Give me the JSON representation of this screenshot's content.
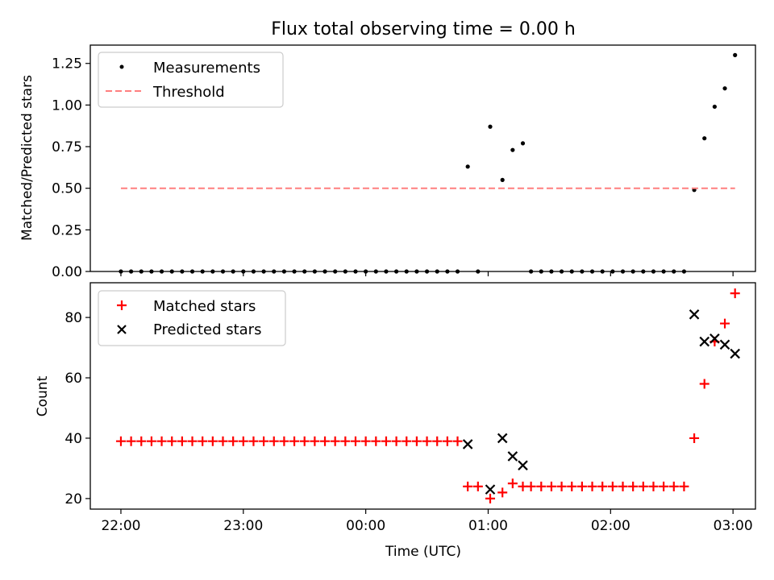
{
  "chart_data": [
    {
      "type": "scatter",
      "title": "Flux total observing time = 0.00 h",
      "xlabel": "",
      "ylabel": "Matched/Predicted stars",
      "ylim": [
        0,
        1.36
      ],
      "xlim": [
        "21:45",
        "03:11"
      ],
      "yticks": [
        0.0,
        0.25,
        0.5,
        0.75,
        1.0,
        1.25
      ],
      "ytick_labels": [
        "0.00",
        "0.25",
        "0.50",
        "0.75",
        "1.00",
        "1.25"
      ],
      "xtick_labels_visible": false,
      "legend": {
        "placement": "upper-left",
        "entries": [
          "Measurements",
          "Threshold"
        ]
      },
      "series": [
        {
          "name": "Measurements",
          "marker": "dot",
          "color": "#000000",
          "points": [
            [
              "22:00",
              0
            ],
            [
              "22:05",
              0
            ],
            [
              "22:10",
              0
            ],
            [
              "22:15",
              0
            ],
            [
              "22:20",
              0
            ],
            [
              "22:25",
              0
            ],
            [
              "22:30",
              0
            ],
            [
              "22:35",
              0
            ],
            [
              "22:40",
              0
            ],
            [
              "22:45",
              0
            ],
            [
              "22:50",
              0
            ],
            [
              "22:55",
              0
            ],
            [
              "23:00",
              0
            ],
            [
              "23:05",
              0
            ],
            [
              "23:10",
              0
            ],
            [
              "23:15",
              0
            ],
            [
              "23:20",
              0
            ],
            [
              "23:25",
              0
            ],
            [
              "23:30",
              0
            ],
            [
              "23:35",
              0
            ],
            [
              "23:40",
              0
            ],
            [
              "23:45",
              0
            ],
            [
              "23:50",
              0
            ],
            [
              "23:55",
              0
            ],
            [
              "00:00",
              0
            ],
            [
              "00:05",
              0
            ],
            [
              "00:10",
              0
            ],
            [
              "00:15",
              0
            ],
            [
              "00:20",
              0
            ],
            [
              "00:25",
              0
            ],
            [
              "00:30",
              0
            ],
            [
              "00:35",
              0
            ],
            [
              "00:40",
              0
            ],
            [
              "00:45",
              0
            ],
            [
              "00:50",
              0.63
            ],
            [
              "00:55",
              0
            ],
            [
              "01:01",
              0.87
            ],
            [
              "01:07",
              0.55
            ],
            [
              "01:12",
              0.73
            ],
            [
              "01:17",
              0.77
            ],
            [
              "01:21",
              0
            ],
            [
              "01:26",
              0
            ],
            [
              "01:31",
              0
            ],
            [
              "01:36",
              0
            ],
            [
              "01:41",
              0
            ],
            [
              "01:46",
              0
            ],
            [
              "01:51",
              0
            ],
            [
              "01:56",
              0
            ],
            [
              "02:01",
              0
            ],
            [
              "02:06",
              0
            ],
            [
              "02:11",
              0
            ],
            [
              "02:16",
              0
            ],
            [
              "02:21",
              0
            ],
            [
              "02:26",
              0
            ],
            [
              "02:31",
              0
            ],
            [
              "02:36",
              0
            ],
            [
              "02:41",
              0.49
            ],
            [
              "02:46",
              0.8
            ],
            [
              "02:51",
              0.99
            ],
            [
              "02:56",
              1.1
            ],
            [
              "03:01",
              1.3
            ]
          ]
        },
        {
          "name": "Threshold",
          "line_style": "dashed",
          "color": "#ff7f7f",
          "x": [
            "22:00",
            "03:01"
          ],
          "values": [
            0.5,
            0.5
          ]
        }
      ]
    },
    {
      "type": "scatter",
      "title": "",
      "xlabel": "Time (UTC)",
      "ylabel": "Count",
      "ylim": [
        16.5,
        91.5
      ],
      "xlim": [
        "21:45",
        "03:11"
      ],
      "yticks": [
        20,
        40,
        60,
        80
      ],
      "ytick_labels": [
        "20",
        "40",
        "60",
        "80"
      ],
      "xticks": [
        "22:00",
        "23:00",
        "00:00",
        "01:00",
        "02:00",
        "03:00"
      ],
      "xtick_labels": [
        "22:00",
        "23:00",
        "00:00",
        "01:00",
        "02:00",
        "03:00"
      ],
      "legend": {
        "placement": "upper-left",
        "entries": [
          "Matched stars",
          "Predicted stars"
        ]
      },
      "series": [
        {
          "name": "Matched stars",
          "marker": "plus",
          "color": "#ff0000",
          "points": [
            [
              "22:00",
              39
            ],
            [
              "22:05",
              39
            ],
            [
              "22:10",
              39
            ],
            [
              "22:15",
              39
            ],
            [
              "22:20",
              39
            ],
            [
              "22:25",
              39
            ],
            [
              "22:30",
              39
            ],
            [
              "22:35",
              39
            ],
            [
              "22:40",
              39
            ],
            [
              "22:45",
              39
            ],
            [
              "22:50",
              39
            ],
            [
              "22:55",
              39
            ],
            [
              "23:00",
              39
            ],
            [
              "23:05",
              39
            ],
            [
              "23:10",
              39
            ],
            [
              "23:15",
              39
            ],
            [
              "23:20",
              39
            ],
            [
              "23:25",
              39
            ],
            [
              "23:30",
              39
            ],
            [
              "23:35",
              39
            ],
            [
              "23:40",
              39
            ],
            [
              "23:45",
              39
            ],
            [
              "23:50",
              39
            ],
            [
              "23:55",
              39
            ],
            [
              "00:00",
              39
            ],
            [
              "00:05",
              39
            ],
            [
              "00:10",
              39
            ],
            [
              "00:15",
              39
            ],
            [
              "00:20",
              39
            ],
            [
              "00:25",
              39
            ],
            [
              "00:30",
              39
            ],
            [
              "00:35",
              39
            ],
            [
              "00:40",
              39
            ],
            [
              "00:45",
              39
            ],
            [
              "00:50",
              24
            ],
            [
              "00:55",
              24
            ],
            [
              "01:01",
              20
            ],
            [
              "01:07",
              22
            ],
            [
              "01:12",
              25
            ],
            [
              "01:17",
              24
            ],
            [
              "01:21",
              24
            ],
            [
              "01:26",
              24
            ],
            [
              "01:31",
              24
            ],
            [
              "01:36",
              24
            ],
            [
              "01:41",
              24
            ],
            [
              "01:46",
              24
            ],
            [
              "01:51",
              24
            ],
            [
              "01:56",
              24
            ],
            [
              "02:01",
              24
            ],
            [
              "02:06",
              24
            ],
            [
              "02:11",
              24
            ],
            [
              "02:16",
              24
            ],
            [
              "02:21",
              24
            ],
            [
              "02:26",
              24
            ],
            [
              "02:31",
              24
            ],
            [
              "02:36",
              24
            ],
            [
              "02:41",
              40
            ],
            [
              "02:46",
              58
            ],
            [
              "02:51",
              72
            ],
            [
              "02:56",
              78
            ],
            [
              "03:01",
              88
            ]
          ]
        },
        {
          "name": "Predicted stars",
          "marker": "x",
          "color": "#000000",
          "points": [
            [
              "00:50",
              38
            ],
            [
              "01:01",
              23
            ],
            [
              "01:07",
              40
            ],
            [
              "01:12",
              34
            ],
            [
              "01:17",
              31
            ],
            [
              "02:41",
              81
            ],
            [
              "02:46",
              72
            ],
            [
              "02:51",
              73
            ],
            [
              "02:56",
              71
            ],
            [
              "03:01",
              68
            ]
          ]
        }
      ]
    }
  ]
}
